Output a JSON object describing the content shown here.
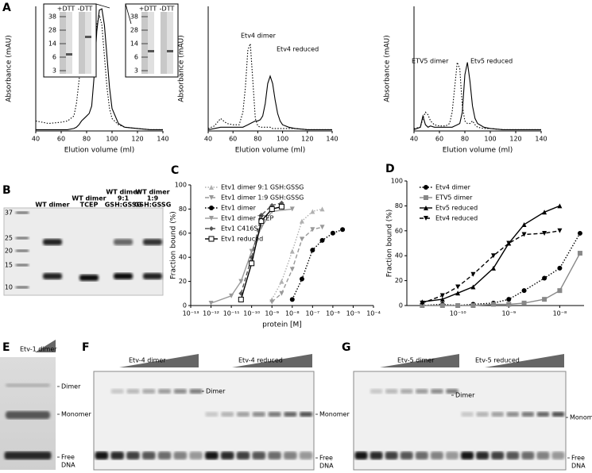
{
  "panel_labels": [
    "A",
    "B",
    "C",
    "D",
    "E",
    "F",
    "G"
  ],
  "chart_data": [
    {
      "type": "line",
      "xlabel": "Elution volume (ml)",
      "ylabel": "Absorbance (mAU)",
      "xlim": [
        40,
        140
      ],
      "xticks": [
        40,
        60,
        80,
        100,
        120,
        140
      ],
      "ylim": [
        0,
        100
      ],
      "x": [
        40,
        50,
        60,
        65,
        70,
        72,
        74,
        76,
        78,
        80,
        82,
        84,
        86,
        88,
        90,
        92,
        94,
        96,
        98,
        100,
        105,
        110,
        120,
        130,
        140
      ],
      "series": [
        {
          "color": "#000000",
          "dash": "dotted",
          "values": [
            8,
            6,
            7,
            8,
            12,
            22,
            40,
            60,
            68,
            62,
            48,
            45,
            60,
            85,
            93,
            85,
            60,
            35,
            18,
            10,
            5,
            3,
            2,
            1,
            1
          ]
        },
        {
          "color": "#000000",
          "dash": "solid",
          "values": [
            1,
            1,
            1,
            1,
            2,
            3,
            5,
            8,
            10,
            12,
            14,
            20,
            45,
            80,
            97,
            98,
            85,
            60,
            35,
            18,
            6,
            3,
            2,
            1,
            1
          ]
        }
      ],
      "insets": [
        {
          "lanes": [
            "+DTT",
            "-DTT"
          ],
          "markers": [
            38,
            28,
            14,
            6,
            3
          ]
        },
        {
          "lanes": [
            "+DTT",
            "-DTT"
          ],
          "markers": [
            38,
            28,
            14,
            6,
            3
          ]
        }
      ]
    },
    {
      "type": "line",
      "xlabel": "Elution volume (ml)",
      "ylabel": "Absorbance (mAU)",
      "xlim": [
        40,
        140
      ],
      "xticks": [
        40,
        60,
        80,
        100,
        120,
        140
      ],
      "ylim": [
        0,
        100
      ],
      "x": [
        40,
        45,
        50,
        55,
        60,
        65,
        68,
        70,
        72,
        74,
        76,
        78,
        80,
        82,
        84,
        86,
        88,
        90,
        92,
        94,
        96,
        98,
        100,
        105,
        110,
        120,
        140
      ],
      "series": [
        {
          "color": "#000000",
          "dash": "dotted",
          "values": [
            2,
            4,
            10,
            6,
            5,
            5,
            15,
            35,
            65,
            70,
            40,
            10,
            4,
            3,
            3,
            3,
            3,
            3,
            2,
            2,
            2,
            2,
            2,
            2,
            2,
            1,
            1
          ]
        },
        {
          "color": "#000000",
          "dash": "solid",
          "values": [
            1,
            2,
            3,
            3,
            3,
            3,
            3,
            4,
            5,
            6,
            7,
            8,
            8,
            9,
            12,
            22,
            38,
            44,
            38,
            25,
            14,
            8,
            5,
            3,
            2,
            1,
            1
          ]
        }
      ],
      "annotations": [
        "Etv4 dimer",
        "Etv4 reduced"
      ]
    },
    {
      "type": "line",
      "xlabel": "Elution volume (ml)",
      "ylabel": "Absorbance (mAU)",
      "xlim": [
        40,
        140
      ],
      "xticks": [
        40,
        60,
        80,
        100,
        120,
        140
      ],
      "ylim": [
        0,
        100
      ],
      "x": [
        40,
        45,
        47,
        49,
        51,
        53,
        56,
        60,
        65,
        68,
        70,
        72,
        74,
        76,
        78,
        80,
        82,
        84,
        86,
        88,
        90,
        95,
        100,
        110,
        120,
        140
      ],
      "series": [
        {
          "color": "#000000",
          "dash": "dotted",
          "values": [
            2,
            3,
            10,
            15,
            13,
            8,
            5,
            4,
            4,
            6,
            15,
            35,
            55,
            50,
            20,
            8,
            6,
            6,
            8,
            5,
            3,
            2,
            2,
            1,
            1,
            1
          ]
        },
        {
          "color": "#000000",
          "dash": "solid",
          "values": [
            1,
            3,
            12,
            5,
            3,
            4,
            3,
            3,
            3,
            3,
            3,
            4,
            5,
            6,
            15,
            45,
            55,
            40,
            20,
            10,
            6,
            3,
            2,
            1,
            1,
            1
          ]
        }
      ],
      "annotations": [
        "ETV5 dimer",
        "Etv5 reduced"
      ]
    },
    {
      "type": "line",
      "xlabel": "protein [M]",
      "ylabel": "Fraction bound (%)",
      "xlog": true,
      "legend": "upper left",
      "xlim": [
        1e-13,
        0.0001
      ],
      "xticks": [
        {
          "value": 1e-13,
          "label": "10⁻¹³"
        },
        {
          "value": 1e-12,
          "label": "10⁻¹²"
        },
        {
          "value": 1e-11,
          "label": "10⁻¹¹"
        },
        {
          "value": 1e-10,
          "label": "10⁻¹⁰"
        },
        {
          "value": 1e-09,
          "label": "10⁻⁹"
        },
        {
          "value": 1e-08,
          "label": "10⁻⁸"
        },
        {
          "value": 1e-07,
          "label": "10⁻⁷"
        },
        {
          "value": 1e-06,
          "label": "10⁻⁶"
        },
        {
          "value": 1e-05,
          "label": "10⁻⁵"
        },
        {
          "value": 0.0001,
          "label": "10⁻⁴"
        }
      ],
      "ylim": [
        0,
        100
      ],
      "yticks": [
        0,
        20,
        40,
        60,
        80,
        100
      ],
      "series": [
        {
          "name": "Etv1 dimer 9:1 GSH:GSSG",
          "color": "#b0b0b0",
          "dash": "dotted",
          "marker": "triangle",
          "x": [
            1e-09,
            3e-09,
            1e-08,
            3e-08,
            1e-07,
            3e-07
          ],
          "values": [
            5,
            20,
            45,
            70,
            78,
            80
          ]
        },
        {
          "name": "Etv1 dimer 1:9 GSH:GSSG",
          "color": "#999999",
          "dash": "dashed",
          "marker": "triangle-down",
          "x": [
            1e-09,
            3e-09,
            1e-08,
            3e-08,
            1e-07,
            3e-07
          ],
          "values": [
            3,
            10,
            30,
            55,
            63,
            65
          ]
        },
        {
          "name": "Etv1 dimer",
          "color": "#000000",
          "dash": "dotted",
          "marker": "circle",
          "x": [
            1e-08,
            3e-08,
            1e-07,
            3e-07,
            1e-06,
            3e-06
          ],
          "values": [
            5,
            22,
            46,
            54,
            60,
            63
          ]
        },
        {
          "name": "Etv1 dimer TCEP",
          "color": "#999999",
          "dash": "solid",
          "marker": "triangle-down",
          "x": [
            1e-12,
            1e-11,
            3e-11,
            1e-10,
            3e-10,
            1e-09,
            1e-08
          ],
          "values": [
            2,
            8,
            20,
            45,
            65,
            78,
            80
          ]
        },
        {
          "name": "Etv1 C416S",
          "color": "#555555",
          "dash": "dashed",
          "marker": "diamond",
          "x": [
            3e-11,
            1e-10,
            3e-10,
            1e-09,
            3e-09
          ],
          "values": [
            10,
            40,
            75,
            83,
            85
          ]
        },
        {
          "name": "Etv1 reduced",
          "color": "#000000",
          "dash": "solid",
          "marker": "square-open",
          "x": [
            3e-11,
            1e-10,
            3e-10,
            1e-09,
            3e-09
          ],
          "values": [
            5,
            35,
            70,
            80,
            82
          ]
        }
      ]
    },
    {
      "type": "line",
      "ylabel": "Fraction bound (%)",
      "xlog": true,
      "legend": "upper left",
      "xlim": [
        1e-11,
        3e-08
      ],
      "xticks": [
        {
          "value": 1e-10,
          "label": "10⁻¹⁰"
        },
        {
          "value": 1e-09,
          "label": "10⁻⁹"
        },
        {
          "value": 1e-08,
          "label": "10⁻⁸"
        }
      ],
      "ylim": [
        0,
        100
      ],
      "yticks": [
        0,
        20,
        40,
        60,
        80,
        100
      ],
      "series": [
        {
          "name": "Etv4 dimer",
          "color": "#000000",
          "dash": "dotted",
          "marker": "circle",
          "x": [
            2e-11,
            5e-11,
            1e-10,
            2e-10,
            5e-10,
            1e-09,
            2e-09,
            5e-09,
            1e-08,
            2.5e-08
          ],
          "values": [
            0,
            1,
            0,
            1,
            2,
            5,
            12,
            22,
            30,
            58
          ]
        },
        {
          "name": "ETV5 dimer",
          "color": "#888888",
          "dash": "solid",
          "marker": "square",
          "x": [
            2e-11,
            5e-11,
            1e-10,
            2e-10,
            5e-10,
            1e-09,
            2e-09,
            5e-09,
            1e-08,
            2.5e-08
          ],
          "values": [
            0,
            0,
            0,
            0,
            1,
            1,
            2,
            5,
            12,
            42
          ]
        },
        {
          "name": "Etv5 reduced",
          "color": "#000000",
          "dash": "solid",
          "marker": "triangle",
          "x": [
            2e-11,
            5e-11,
            1e-10,
            2e-10,
            5e-10,
            1e-09,
            2e-09,
            5e-09,
            1e-08
          ],
          "values": [
            3,
            5,
            10,
            15,
            30,
            50,
            65,
            75,
            80
          ]
        },
        {
          "name": "Etv4 reduced",
          "color": "#000000",
          "dash": "dashed",
          "marker": "triangle-down",
          "x": [
            2e-11,
            5e-11,
            1e-10,
            2e-10,
            5e-10,
            1e-09,
            2e-09,
            5e-09,
            1e-08
          ],
          "values": [
            2,
            8,
            15,
            25,
            40,
            50,
            57,
            58,
            60
          ]
        }
      ]
    }
  ],
  "gels": {
    "B": {
      "lanes": [
        [
          "WT dimer"
        ],
        [
          "WT dimer",
          "TCEP"
        ],
        [
          "WT dimer",
          "9:1",
          "GSH:GSSG"
        ],
        [
          "WT dimer",
          "1:9",
          "GSH:GSSG"
        ]
      ],
      "markers": [
        37,
        25,
        20,
        15,
        10
      ]
    },
    "E": {
      "groups": [
        "Etv-1 dimer"
      ],
      "labels": [
        "Dimer",
        "Monomer"
      ],
      "free": [
        "Free",
        "DNA"
      ]
    },
    "F": {
      "groups": [
        "Etv-4 dimer",
        "Etv-4 reduced"
      ],
      "labels": [
        "Dimer",
        "Monomer"
      ],
      "free": [
        "Free",
        "DNA"
      ]
    },
    "G": {
      "groups": [
        "Etv-5 dimer",
        "Etv-5 reduced"
      ],
      "labels": [
        "Dimer",
        "Monomer"
      ],
      "free": [
        "Free",
        "DNA"
      ]
    }
  }
}
